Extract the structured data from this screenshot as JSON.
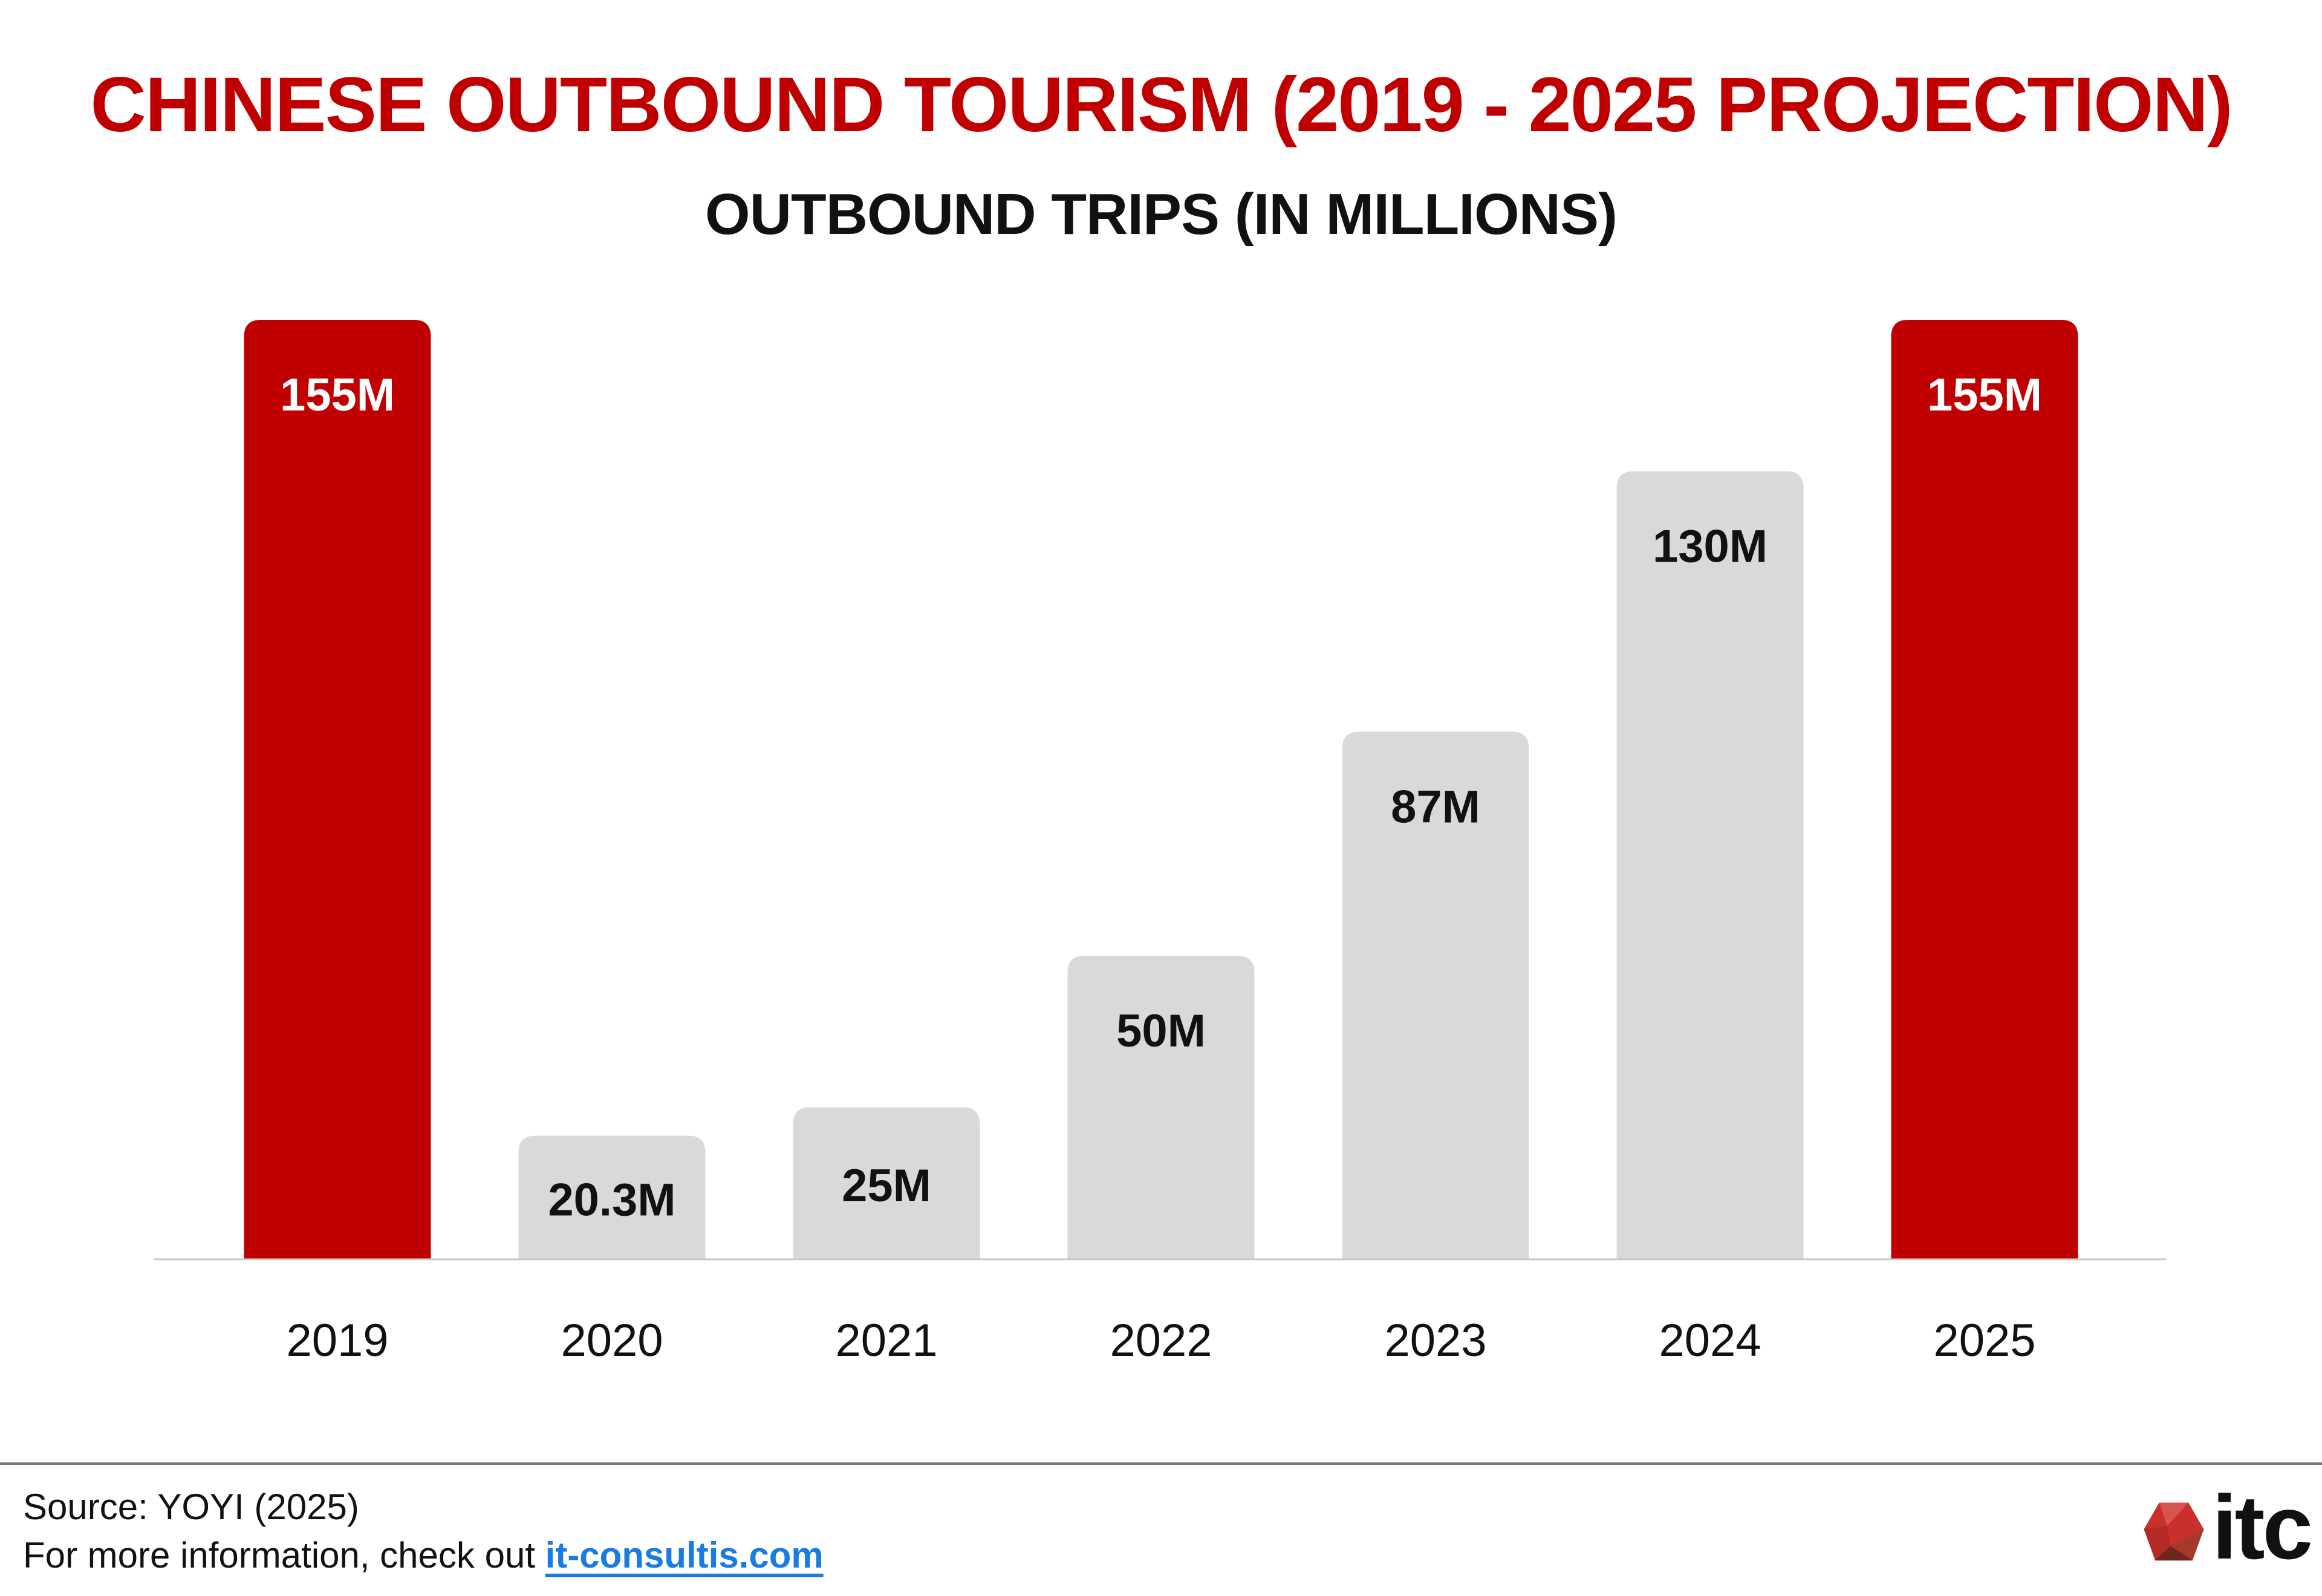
{
  "chart_data": {
    "type": "bar",
    "title": "CHINESE OUTBOUND TOURISM (2019 - 2025 PROJECTION)",
    "subtitle": "OUTBOUND TRIPS (IN MILLIONS)",
    "xlabel": "",
    "ylabel": "",
    "categories": [
      "2019",
      "2020",
      "2021",
      "2022",
      "2023",
      "2024",
      "2025"
    ],
    "values": [
      155,
      20.3,
      25,
      50,
      87,
      130,
      155
    ],
    "data_labels": [
      "155M",
      "20.3M",
      "25M",
      "50M",
      "87M",
      "130M",
      "155M"
    ],
    "ylim": [
      0,
      155
    ],
    "grid": false,
    "legend": "none",
    "colors": {
      "highlight": "#c00000",
      "default": "#d9d9d9",
      "label_on_highlight": "#ffffff",
      "label_on_default": "#111111"
    },
    "highlighted": [
      true,
      false,
      false,
      false,
      false,
      false,
      true
    ]
  },
  "footer": {
    "source": "Source: YOYI (2025)",
    "more_prefix": "For more information, check out ",
    "link_text": "it-consultis.com",
    "logo_text": "itc"
  }
}
